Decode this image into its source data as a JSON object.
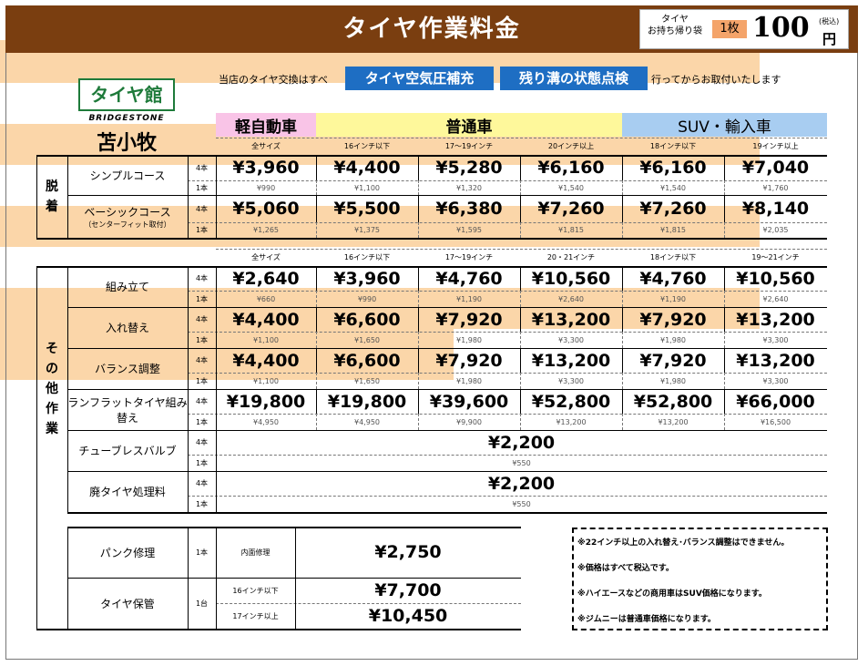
{
  "header": {
    "title": "タイヤ作業料金"
  },
  "takeaway": {
    "label_line1": "タイヤ",
    "label_line2": "お持ち帰り袋",
    "qty": "1枚",
    "price": "100",
    "tax": "(税込)",
    "unit": "円"
  },
  "brand": {
    "logo": "タイヤ館",
    "maker": "BRIDGESTONE",
    "shop": "苫小牧"
  },
  "intro": {
    "before": "当店のタイヤ交換はすべ",
    "tag1": "タイヤ空気圧補充",
    "tag2": "残り溝の状態点検",
    "after": "行ってからお取付いたします"
  },
  "categories": {
    "kei": "軽自動車",
    "normal": "普通車",
    "suv": "SUV・輸入車"
  },
  "colors": {
    "kei": "#f9c4e7",
    "normal": "#fef89b",
    "suv": "#a8cdf1",
    "peach": "#fbd6a9",
    "header": "#7a3e10",
    "tag": "#1e6ec3",
    "logo": "#1e7a3a"
  },
  "counts": {
    "four": "4本",
    "one": "1本",
    "unit_dai": "1台"
  },
  "section1": {
    "name": "脱着",
    "sizes": [
      "全サイズ",
      "16インチ以下",
      "17～19インチ",
      "20インチ以上",
      "18インチ以下",
      "19インチ以上"
    ],
    "rows": [
      {
        "label": "シンプルコース",
        "sub": "",
        "four": [
          "¥3,960",
          "¥4,400",
          "¥5,280",
          "¥6,160",
          "¥6,160",
          "¥7,040"
        ],
        "one": [
          "¥990",
          "¥1,100",
          "¥1,320",
          "¥1,540",
          "¥1,540",
          "¥1,760"
        ]
      },
      {
        "label": "ベーシックコース",
        "sub": "（センターフィット取付）",
        "four": [
          "¥5,060",
          "¥5,500",
          "¥6,380",
          "¥7,260",
          "¥7,260",
          "¥8,140"
        ],
        "one": [
          "¥1,265",
          "¥1,375",
          "¥1,595",
          "¥1,815",
          "¥1,815",
          "¥2,035"
        ]
      }
    ]
  },
  "section2": {
    "name": "その他作業",
    "sizes": [
      "全サイズ",
      "16インチ以下",
      "17～19インチ",
      "20・21インチ",
      "18インチ以下",
      "19～21インチ"
    ],
    "rows": [
      {
        "label": "組み立て",
        "four": [
          "¥2,640",
          "¥3,960",
          "¥4,760",
          "¥10,560",
          "¥4,760",
          "¥10,560"
        ],
        "one": [
          "¥660",
          "¥990",
          "¥1,190",
          "¥2,640",
          "¥1,190",
          "¥2,640"
        ]
      },
      {
        "label": "入れ替え",
        "four": [
          "¥4,400",
          "¥6,600",
          "¥7,920",
          "¥13,200",
          "¥7,920",
          "¥13,200"
        ],
        "one": [
          "¥1,100",
          "¥1,650",
          "¥1,980",
          "¥3,300",
          "¥1,980",
          "¥3,300"
        ]
      },
      {
        "label": "バランス調整",
        "four": [
          "¥4,400",
          "¥6,600",
          "¥7,920",
          "¥13,200",
          "¥7,920",
          "¥13,200"
        ],
        "one": [
          "¥1,100",
          "¥1,650",
          "¥1,980",
          "¥3,300",
          "¥1,980",
          "¥3,300"
        ]
      },
      {
        "label": "ランフラットタイヤ組み替え",
        "four": [
          "¥19,800",
          "¥19,800",
          "¥39,600",
          "¥52,800",
          "¥52,800",
          "¥66,000"
        ],
        "one": [
          "¥4,950",
          "¥4,950",
          "¥9,900",
          "¥13,200",
          "¥13,200",
          "¥16,500"
        ]
      }
    ],
    "flat": [
      {
        "label": "チューブレスバルブ",
        "four": "¥2,200",
        "one": "¥550"
      },
      {
        "label": "廃タイヤ処理料",
        "four": "¥2,200",
        "one": "¥550"
      }
    ]
  },
  "section3": {
    "puncture": {
      "label": "パンク修理",
      "count": "1本",
      "type": "内面修理",
      "price": "¥2,750"
    },
    "storage": {
      "label": "タイヤ保管",
      "count": "1台",
      "rows": [
        {
          "size": "16インチ以下",
          "price": "¥7,700"
        },
        {
          "size": "17インチ以上",
          "price": "¥10,450"
        }
      ]
    }
  },
  "notes": [
    "※22インチ以上の入れ替え･バランス調整はできません。",
    "※価格はすべて税込です。",
    "※ハイエースなどの商用車はSUV価格になります。",
    "※ジムニーは普通車価格になります。"
  ]
}
